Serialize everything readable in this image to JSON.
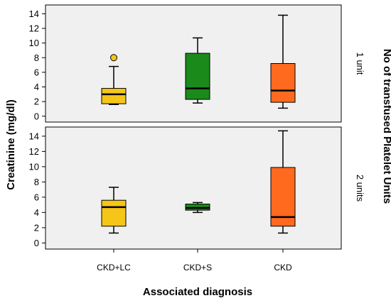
{
  "chart_data": {
    "type": "boxplot",
    "xlabel": "Associated diagnosis",
    "ylabel": "Creatinine (mg/dl)",
    "facet_title": "No of transfused Platelet Units",
    "categories": [
      "CKD+LC",
      "CKD+S",
      "CKD"
    ],
    "colors": [
      "#f5c518",
      "#1a8a1a",
      "#ff6a1f"
    ],
    "yticks": [
      0,
      2,
      4,
      6,
      8,
      10,
      12,
      14
    ],
    "panels": [
      {
        "label": "1 unit",
        "ylim": [
          -0.8,
          15.2
        ],
        "boxes": [
          {
            "category": "CKD+LC",
            "whisker_low": 1.6,
            "q1": 1.7,
            "median": 3.0,
            "q3": 3.8,
            "whisker_high": 6.8,
            "outliers": [
              8.0
            ]
          },
          {
            "category": "CKD+S",
            "whisker_low": 1.8,
            "q1": 2.3,
            "median": 3.8,
            "q3": 8.6,
            "whisker_high": 10.7,
            "outliers": []
          },
          {
            "category": "CKD",
            "whisker_low": 1.1,
            "q1": 1.9,
            "median": 3.5,
            "q3": 7.2,
            "whisker_high": 13.8,
            "outliers": []
          }
        ]
      },
      {
        "label": "2 units",
        "ylim": [
          -0.8,
          15.2
        ],
        "boxes": [
          {
            "category": "CKD+LC",
            "whisker_low": 1.3,
            "q1": 2.2,
            "median": 4.7,
            "q3": 5.6,
            "whisker_high": 7.3,
            "outliers": []
          },
          {
            "category": "CKD+S",
            "whisker_low": 4.0,
            "q1": 4.3,
            "median": 4.6,
            "q3": 5.1,
            "whisker_high": 5.3,
            "outliers": []
          },
          {
            "category": "CKD",
            "whisker_low": 1.3,
            "q1": 2.2,
            "median": 3.4,
            "q3": 9.9,
            "whisker_high": 14.7,
            "outliers": []
          }
        ]
      }
    ]
  }
}
